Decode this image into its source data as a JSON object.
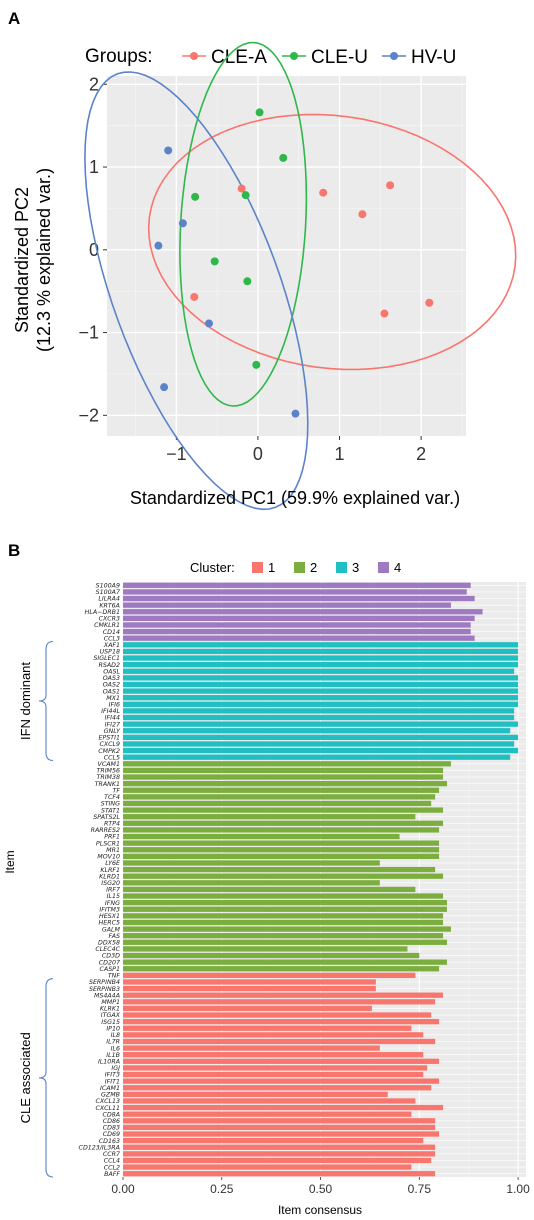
{
  "panel_a": {
    "label": "A"
  },
  "panel_b": {
    "label": "B"
  },
  "chart_data": [
    {
      "type": "scatter",
      "legend_title": "Groups:",
      "legend_placement": "top",
      "grid": true,
      "xlabel": "Standardized PC1 (59.9% explained var.)",
      "ylabel": "Standardized PC2",
      "ylabel2": "(12.3 % explained var.)",
      "xlim": [
        -1.85,
        2.55
      ],
      "ylim": [
        -2.25,
        2.1
      ],
      "xticks": [
        -1,
        0,
        1,
        2
      ],
      "yticks": [
        -2,
        -1,
        0,
        1,
        2
      ],
      "xtick_labels": [
        "−1",
        "0",
        "1",
        "2"
      ],
      "ytick_labels": [
        "−2",
        "−1",
        "0",
        "1",
        "2"
      ],
      "ellipses": true,
      "series": [
        {
          "name": "CLE-A",
          "color": "#f8766d",
          "x": [
            -0.78,
            -0.2,
            0.8,
            1.28,
            1.62,
            1.55,
            2.1
          ],
          "y": [
            -0.57,
            0.74,
            0.69,
            0.43,
            0.78,
            -0.77,
            -0.64
          ]
        },
        {
          "name": "CLE-U",
          "color": "#2eb84a",
          "x": [
            -0.77,
            -0.53,
            -0.15,
            -0.13,
            0.02,
            0.31,
            -0.02
          ],
          "y": [
            0.64,
            -0.14,
            0.66,
            -0.38,
            1.66,
            1.11,
            -1.39
          ]
        },
        {
          "name": "HV-U",
          "color": "#5b83c9",
          "x": [
            -1.1,
            -0.92,
            -1.22,
            -0.6,
            -1.15,
            0.46
          ],
          "y": [
            1.2,
            0.32,
            0.05,
            -0.89,
            -1.66,
            -1.98
          ]
        }
      ]
    },
    {
      "type": "bar",
      "orientation": "horizontal",
      "legend_title": "Cluster:",
      "legend_placement": "top",
      "grid": true,
      "xlabel": "Item consensus",
      "ylabel": "Item",
      "xlim": [
        0,
        1.02
      ],
      "xticks": [
        0,
        0.25,
        0.5,
        0.75,
        1.0
      ],
      "xtick_labels": [
        "0.00",
        "0.25",
        "0.50",
        "0.75",
        "1.00"
      ],
      "clusters": [
        {
          "name": "1",
          "color": "#f8766d"
        },
        {
          "name": "2",
          "color": "#7cae3f"
        },
        {
          "name": "3",
          "color": "#20bfc2"
        },
        {
          "name": "4",
          "color": "#9f79c2"
        }
      ],
      "groups": [
        {
          "label": "IFN dominant",
          "from": "XAF1",
          "to": "CCL5"
        },
        {
          "label": "CLE associated",
          "from": "SERPINB4",
          "to": "BAFF"
        }
      ],
      "items": [
        {
          "name": "S100A9",
          "cluster": 4,
          "value": 0.88
        },
        {
          "name": "S100A7",
          "cluster": 4,
          "value": 0.87
        },
        {
          "name": "LILRA4",
          "cluster": 4,
          "value": 0.89
        },
        {
          "name": "KRT6A",
          "cluster": 4,
          "value": 0.83
        },
        {
          "name": "HLA−DRB1",
          "cluster": 4,
          "value": 0.91
        },
        {
          "name": "CXCR3",
          "cluster": 4,
          "value": 0.89
        },
        {
          "name": "CMKLR1",
          "cluster": 4,
          "value": 0.88
        },
        {
          "name": "CD14",
          "cluster": 4,
          "value": 0.88
        },
        {
          "name": "CCL3",
          "cluster": 4,
          "value": 0.89
        },
        {
          "name": "XAF1",
          "cluster": 3,
          "value": 1.0
        },
        {
          "name": "USP18",
          "cluster": 3,
          "value": 1.0
        },
        {
          "name": "SIGLEC1",
          "cluster": 3,
          "value": 1.0
        },
        {
          "name": "RSAD2",
          "cluster": 3,
          "value": 1.0
        },
        {
          "name": "OASL",
          "cluster": 3,
          "value": 0.99
        },
        {
          "name": "OAS3",
          "cluster": 3,
          "value": 1.0
        },
        {
          "name": "OAS2",
          "cluster": 3,
          "value": 1.0
        },
        {
          "name": "OAS1",
          "cluster": 3,
          "value": 1.0
        },
        {
          "name": "MX1",
          "cluster": 3,
          "value": 1.0
        },
        {
          "name": "IFI6",
          "cluster": 3,
          "value": 1.0
        },
        {
          "name": "IFI44L",
          "cluster": 3,
          "value": 0.99
        },
        {
          "name": "IFI44",
          "cluster": 3,
          "value": 0.99
        },
        {
          "name": "IFI27",
          "cluster": 3,
          "value": 1.0
        },
        {
          "name": "GNLY",
          "cluster": 3,
          "value": 0.98
        },
        {
          "name": "EPSTI1",
          "cluster": 3,
          "value": 1.0
        },
        {
          "name": "CXCL9",
          "cluster": 3,
          "value": 0.99
        },
        {
          "name": "CMPK2",
          "cluster": 3,
          "value": 1.0
        },
        {
          "name": "CCL5",
          "cluster": 3,
          "value": 0.98
        },
        {
          "name": "VCAM1",
          "cluster": 2,
          "value": 0.83
        },
        {
          "name": "TRIM56",
          "cluster": 2,
          "value": 0.81
        },
        {
          "name": "TRIM38",
          "cluster": 2,
          "value": 0.81
        },
        {
          "name": "TRANK1",
          "cluster": 2,
          "value": 0.82
        },
        {
          "name": "TF",
          "cluster": 2,
          "value": 0.8
        },
        {
          "name": "TCF4",
          "cluster": 2,
          "value": 0.79
        },
        {
          "name": "STING",
          "cluster": 2,
          "value": 0.78
        },
        {
          "name": "STAT1",
          "cluster": 2,
          "value": 0.81
        },
        {
          "name": "SPATS2L",
          "cluster": 2,
          "value": 0.74
        },
        {
          "name": "RTP4",
          "cluster": 2,
          "value": 0.81
        },
        {
          "name": "RARRES2",
          "cluster": 2,
          "value": 0.8
        },
        {
          "name": "PRF1",
          "cluster": 2,
          "value": 0.7
        },
        {
          "name": "PLSCR1",
          "cluster": 2,
          "value": 0.8
        },
        {
          "name": "MR1",
          "cluster": 2,
          "value": 0.8
        },
        {
          "name": "MOV10",
          "cluster": 2,
          "value": 0.8
        },
        {
          "name": "LY6E",
          "cluster": 2,
          "value": 0.65
        },
        {
          "name": "KLRF1",
          "cluster": 2,
          "value": 0.79
        },
        {
          "name": "KLRD1",
          "cluster": 2,
          "value": 0.81
        },
        {
          "name": "ISG20",
          "cluster": 2,
          "value": 0.65
        },
        {
          "name": "IRF7",
          "cluster": 2,
          "value": 0.74
        },
        {
          "name": "IL15",
          "cluster": 2,
          "value": 0.81
        },
        {
          "name": "IFNG",
          "cluster": 2,
          "value": 0.82
        },
        {
          "name": "IFITM3",
          "cluster": 2,
          "value": 0.82
        },
        {
          "name": "HESX1",
          "cluster": 2,
          "value": 0.81
        },
        {
          "name": "HERC5",
          "cluster": 2,
          "value": 0.81
        },
        {
          "name": "GALM",
          "cluster": 2,
          "value": 0.83
        },
        {
          "name": "FAS",
          "cluster": 2,
          "value": 0.81
        },
        {
          "name": "DDX58",
          "cluster": 2,
          "value": 0.82
        },
        {
          "name": "CLEC4C",
          "cluster": 2,
          "value": 0.72
        },
        {
          "name": "CD3D",
          "cluster": 2,
          "value": 0.75
        },
        {
          "name": "CD207",
          "cluster": 2,
          "value": 0.82
        },
        {
          "name": "CASP1",
          "cluster": 2,
          "value": 0.8
        },
        {
          "name": "TNF",
          "cluster": 1,
          "value": 0.74
        },
        {
          "name": "SERPINB4",
          "cluster": 1,
          "value": 0.64
        },
        {
          "name": "SERPINB3",
          "cluster": 1,
          "value": 0.64
        },
        {
          "name": "MS4A4A",
          "cluster": 1,
          "value": 0.81
        },
        {
          "name": "MMP1",
          "cluster": 1,
          "value": 0.79
        },
        {
          "name": "KLRK1",
          "cluster": 1,
          "value": 0.63
        },
        {
          "name": "ITGAX",
          "cluster": 1,
          "value": 0.78
        },
        {
          "name": "ISG15",
          "cluster": 1,
          "value": 0.8
        },
        {
          "name": "IP10",
          "cluster": 1,
          "value": 0.73
        },
        {
          "name": "IL8",
          "cluster": 1,
          "value": 0.76
        },
        {
          "name": "IL7R",
          "cluster": 1,
          "value": 0.79
        },
        {
          "name": "IL6",
          "cluster": 1,
          "value": 0.65
        },
        {
          "name": "IL1B",
          "cluster": 1,
          "value": 0.76
        },
        {
          "name": "IL10RA",
          "cluster": 1,
          "value": 0.8
        },
        {
          "name": "IGJ",
          "cluster": 1,
          "value": 0.77
        },
        {
          "name": "IFIT3",
          "cluster": 1,
          "value": 0.76
        },
        {
          "name": "IFIT1",
          "cluster": 1,
          "value": 0.8
        },
        {
          "name": "ICAM1",
          "cluster": 1,
          "value": 0.78
        },
        {
          "name": "GZMB",
          "cluster": 1,
          "value": 0.67
        },
        {
          "name": "CXCL13",
          "cluster": 1,
          "value": 0.74
        },
        {
          "name": "CXCL11",
          "cluster": 1,
          "value": 0.81
        },
        {
          "name": "CD8A",
          "cluster": 1,
          "value": 0.73
        },
        {
          "name": "CD86",
          "cluster": 1,
          "value": 0.79
        },
        {
          "name": "CD83",
          "cluster": 1,
          "value": 0.79
        },
        {
          "name": "CD69",
          "cluster": 1,
          "value": 0.8
        },
        {
          "name": "CD163",
          "cluster": 1,
          "value": 0.76
        },
        {
          "name": "CD123/IL3RA",
          "cluster": 1,
          "value": 0.79
        },
        {
          "name": "CCR7",
          "cluster": 1,
          "value": 0.79
        },
        {
          "name": "CCL4",
          "cluster": 1,
          "value": 0.78
        },
        {
          "name": "CCL2",
          "cluster": 1,
          "value": 0.73
        },
        {
          "name": "BAFF",
          "cluster": 1,
          "value": 0.79
        }
      ]
    }
  ]
}
